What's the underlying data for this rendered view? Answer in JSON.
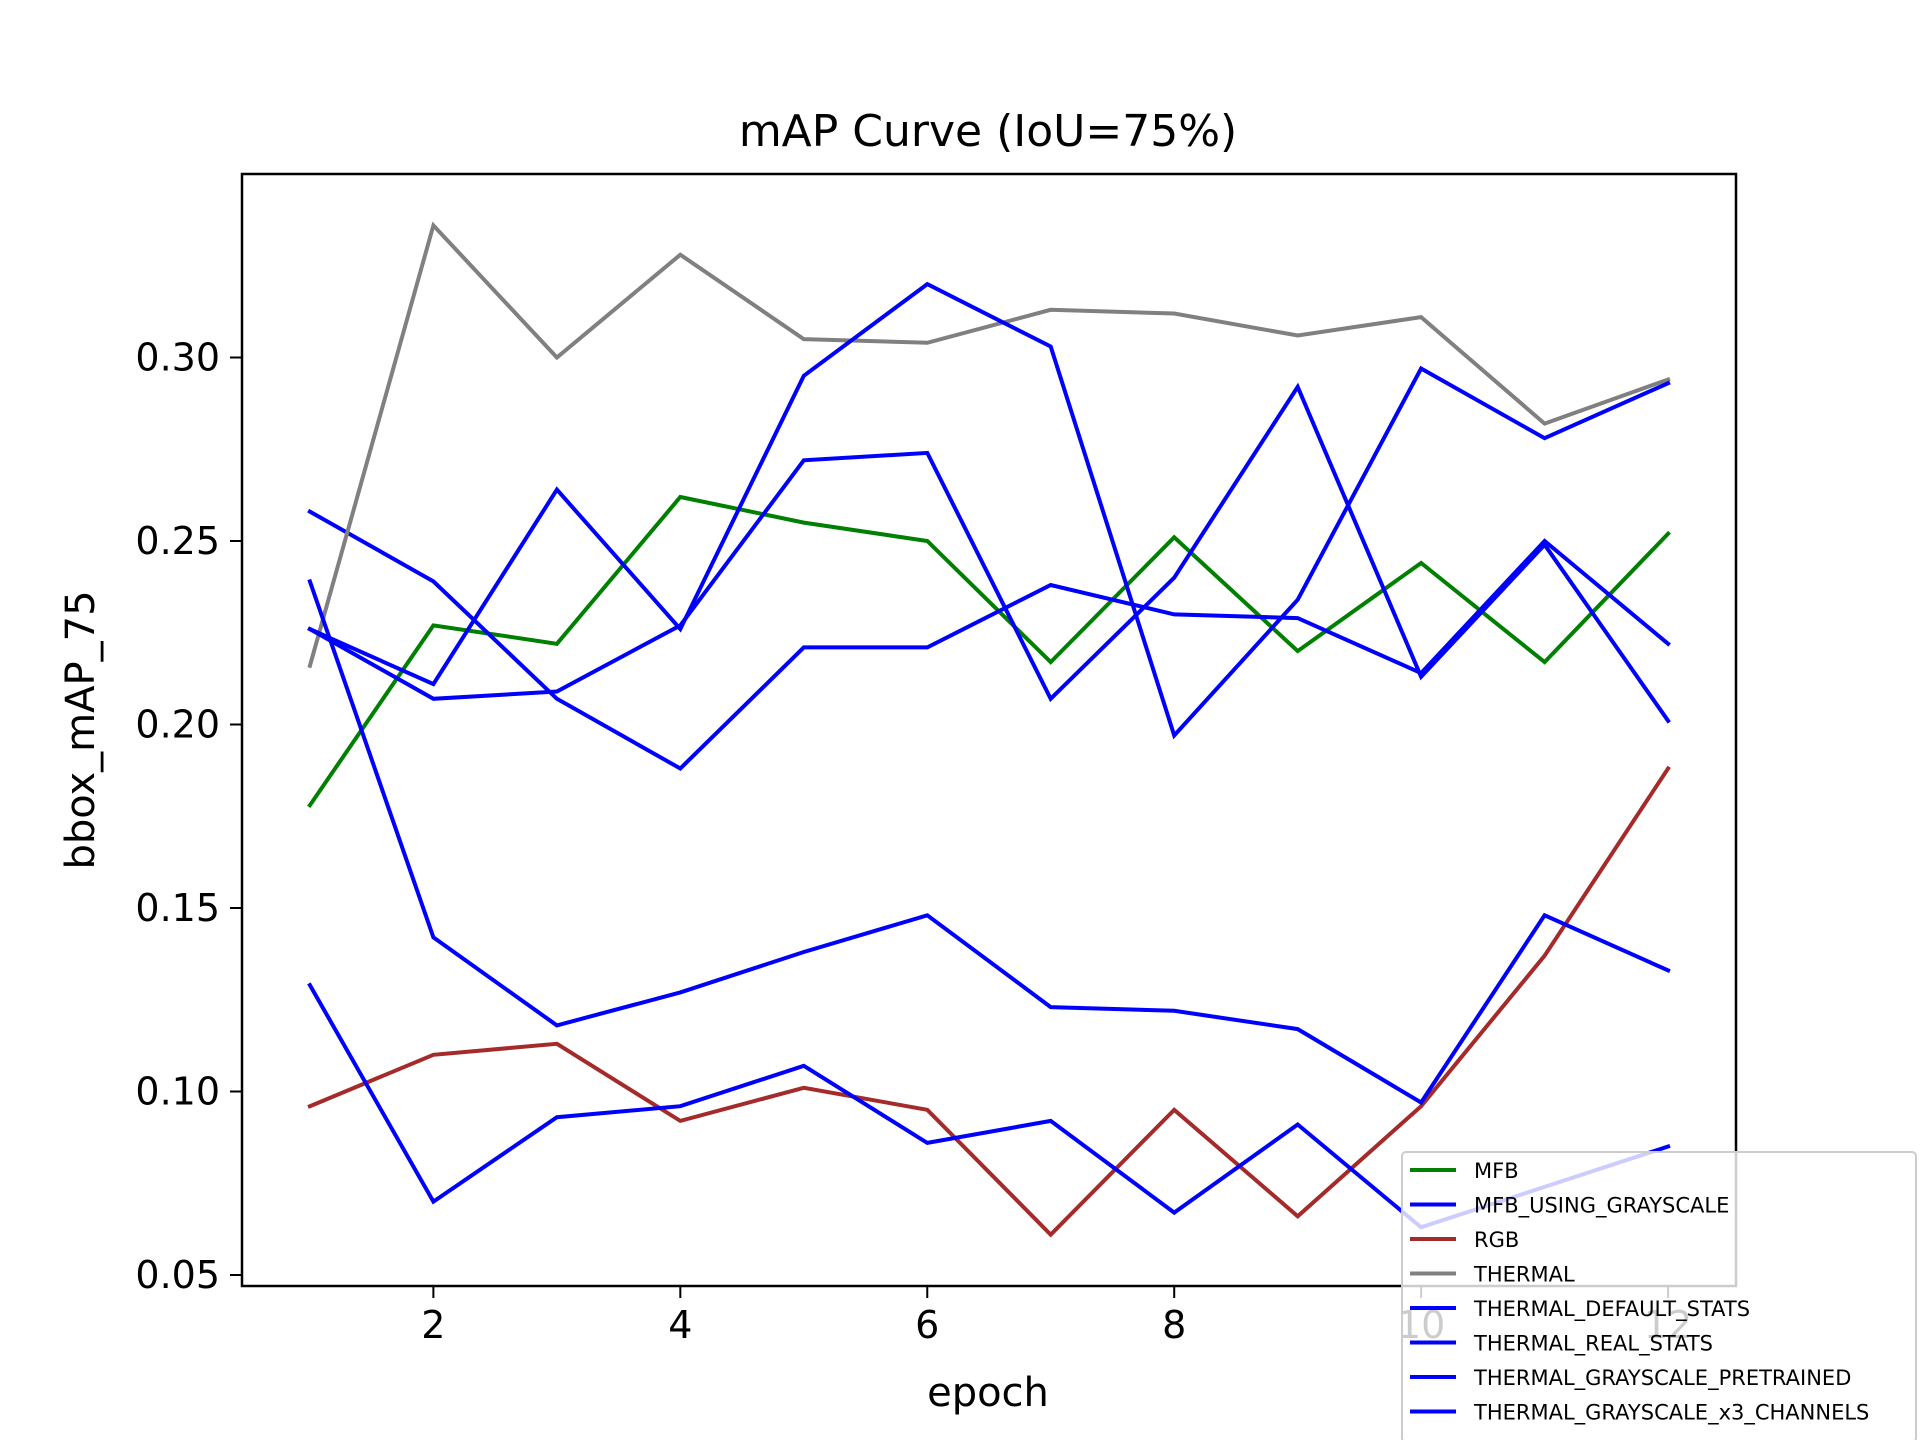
{
  "chart_data": {
    "type": "line",
    "title": "mAP Curve (IoU=75%)",
    "xlabel": "epoch",
    "ylabel": "bbox_mAP_75",
    "x": [
      1,
      2,
      3,
      4,
      5,
      6,
      7,
      8,
      9,
      10,
      11,
      12
    ],
    "xlim": [
      0.45,
      12.55
    ],
    "ylim": [
      0.047,
      0.35
    ],
    "xticks": [
      2,
      4,
      6,
      8,
      10,
      12
    ],
    "xtick_labels": [
      "2",
      "4",
      "6",
      "8",
      "10",
      "12"
    ],
    "yticks": [
      0.05,
      0.1,
      0.15,
      0.2,
      0.25,
      0.3
    ],
    "ytick_labels": [
      "0.05",
      "0.10",
      "0.15",
      "0.20",
      "0.25",
      "0.30"
    ],
    "grid": false,
    "legend_position": "lower-right",
    "series": [
      {
        "name": "MFB",
        "color": "#008000",
        "values": [
          0.178,
          0.227,
          0.222,
          0.262,
          0.255,
          0.25,
          0.217,
          0.251,
          0.22,
          0.244,
          0.217,
          0.252
        ]
      },
      {
        "name": "MFB_USING_GRAYSCALE",
        "color": "#0000ff",
        "values": [
          0.258,
          0.239,
          0.207,
          0.188,
          0.221,
          0.221,
          0.238,
          0.23,
          0.229,
          0.214,
          0.25,
          0.222
        ]
      },
      {
        "name": "RGB",
        "color": "#a52a2a",
        "values": [
          0.096,
          0.11,
          0.113,
          0.092,
          0.101,
          0.095,
          0.061,
          0.095,
          0.066,
          0.096,
          0.137,
          0.188
        ]
      },
      {
        "name": "THERMAL",
        "color": "#808080",
        "values": [
          0.216,
          0.336,
          0.3,
          0.328,
          0.305,
          0.304,
          0.313,
          0.312,
          0.306,
          0.311,
          0.282,
          0.294
        ]
      },
      {
        "name": "THERMAL_DEFAULT_STATS",
        "color": "#0000ff",
        "values": [
          0.226,
          0.207,
          0.209,
          0.227,
          0.272,
          0.274,
          0.207,
          0.24,
          0.292,
          0.213,
          0.249,
          0.201
        ]
      },
      {
        "name": "THERMAL_REAL_STATS",
        "color": "#0000ff",
        "values": [
          0.239,
          0.142,
          0.118,
          0.127,
          0.138,
          0.148,
          0.123,
          0.122,
          0.117,
          0.097,
          0.148,
          0.133
        ]
      },
      {
        "name": "THERMAL_GRAYSCALE_PRETRAINED",
        "color": "#0000ff",
        "values": [
          0.129,
          0.07,
          0.093,
          0.096,
          0.107,
          0.086,
          0.092,
          0.067,
          0.091,
          0.063,
          0.074,
          0.085
        ]
      },
      {
        "name": "THERMAL_GRAYSCALE_x3_CHANNELS",
        "color": "#0000ff",
        "values": [
          0.226,
          0.211,
          0.264,
          0.226,
          0.295,
          0.32,
          0.303,
          0.197,
          0.234,
          0.297,
          0.278,
          0.293
        ]
      }
    ]
  }
}
